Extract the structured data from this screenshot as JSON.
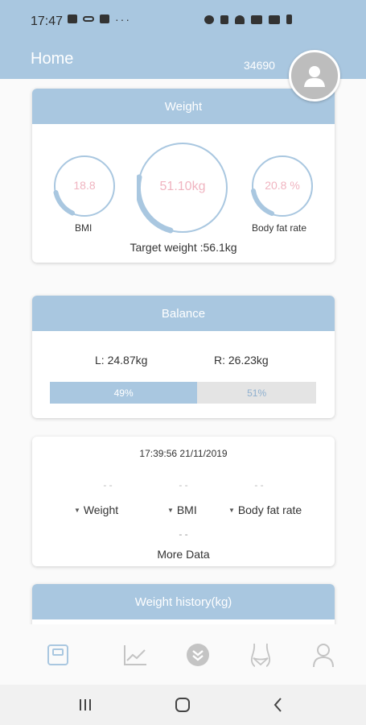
{
  "status_bar": {
    "time": "17:47",
    "more": "···"
  },
  "header": {
    "title": "Home",
    "user_id": "34690"
  },
  "weight_card": {
    "title": "Weight",
    "bmi_value": "18.8",
    "bmi_label": "BMI",
    "weight_value": "51.10kg",
    "fat_value": "20.8 %",
    "fat_label": "Body fat rate",
    "target": "Target weight :56.1kg"
  },
  "balance_card": {
    "title": "Balance",
    "left": "L: 24.87kg",
    "right": "R: 26.23kg",
    "left_pct_label": "49%",
    "right_pct_label": "51%",
    "left_fraction": 0.49
  },
  "data_card": {
    "timestamp": "17:39:56  21/11/2019",
    "weight_value": "- -",
    "bmi_value": "- -",
    "fat_value": "- -",
    "weight_label": "Weight",
    "bmi_label": "BMI",
    "fat_label": "Body fat rate",
    "more_value": "- -",
    "more_label": "More Data"
  },
  "history_card": {
    "title": "Weight history(kg)"
  },
  "colors": {
    "accent": "#a9c7e0",
    "value_pink": "#f0b4c0"
  },
  "tabs": [
    "scale-icon",
    "chart-icon",
    "chevron-down-circle-icon",
    "body-icon",
    "profile-icon"
  ]
}
